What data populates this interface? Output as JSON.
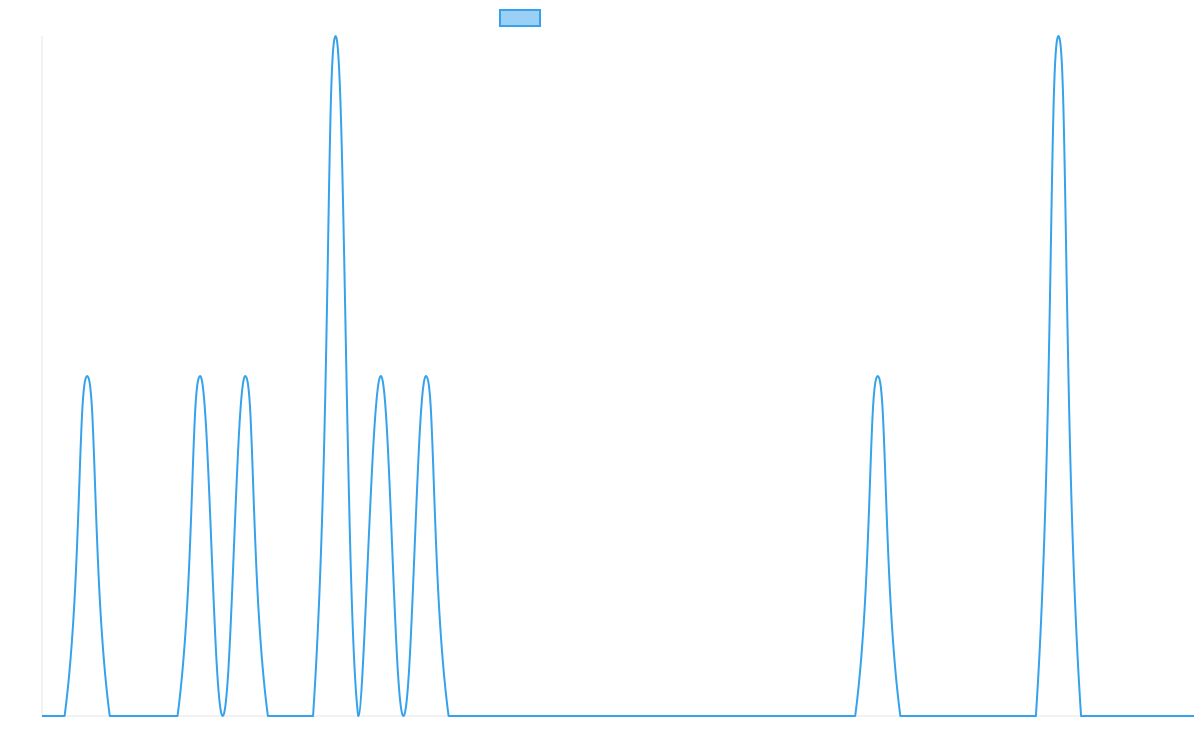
{
  "chart_data": {
    "type": "line",
    "title": "",
    "xlabel": "",
    "ylabel": "",
    "x": [
      0,
      1,
      2,
      3,
      4,
      5,
      6,
      7,
      8,
      9,
      10,
      11,
      12,
      13,
      14,
      15,
      16,
      17,
      18,
      19,
      20,
      21,
      22,
      23,
      24,
      25,
      26,
      27,
      28,
      29,
      30,
      31,
      32,
      33,
      34,
      35,
      36,
      37,
      38,
      39,
      40,
      41,
      42,
      43,
      44,
      45,
      46,
      47,
      48,
      49,
      50,
      51
    ],
    "series": [
      {
        "name": "",
        "color": "#36a2eb",
        "fill": "#9ad0f5",
        "values": [
          0,
          0,
          1,
          0,
          0,
          0,
          0,
          1,
          0,
          1,
          0,
          0,
          0,
          2,
          0,
          1,
          0,
          1,
          0,
          0,
          0,
          0,
          0,
          0,
          0,
          0,
          0,
          0,
          0,
          0,
          0,
          0,
          0,
          0,
          0,
          0,
          0,
          1,
          0,
          0,
          0,
          0,
          0,
          0,
          0,
          2,
          0,
          0,
          0,
          0,
          0,
          0
        ]
      }
    ],
    "ylim": [
      0,
      2
    ],
    "grid": false,
    "legend": "top-center",
    "tension": 0.4,
    "colors": {
      "line": "#36a2eb",
      "legend_fill": "#9ad0f5",
      "axis": "#e6e6e6",
      "background": "#ffffff"
    }
  }
}
